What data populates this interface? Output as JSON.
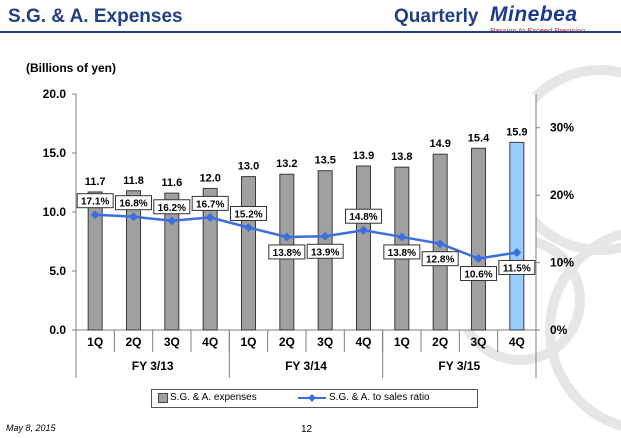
{
  "header": {
    "title": "S.G. & A. Expenses",
    "period_label": "Quarterly",
    "logo_name": "Minebea",
    "logo_tagline": "Passion to Exceed Precision",
    "brand_color": "#1f3f86",
    "tagline_color": "#c81e1e"
  },
  "footer": {
    "date": "May 8, 2015",
    "page": "12"
  },
  "chart_data": {
    "type": "bar",
    "title": "S.G. & A. Expenses",
    "unit_label": "(Billions of yen)",
    "ylim": [
      0,
      20
    ],
    "y_ticks": [
      "0.0",
      "5.0",
      "10.0",
      "15.0",
      "20.0"
    ],
    "y2lim": [
      0,
      35
    ],
    "y2_ticks": [
      "0%",
      "10%",
      "20%",
      "30%"
    ],
    "categories": [
      "1Q",
      "2Q",
      "3Q",
      "4Q",
      "1Q",
      "2Q",
      "3Q",
      "4Q",
      "1Q",
      "2Q",
      "3Q",
      "4Q"
    ],
    "groups": [
      {
        "label": "FY 3/13",
        "count": 4
      },
      {
        "label": "FY 3/14",
        "count": 4
      },
      {
        "label": "FY 3/15",
        "count": 4
      }
    ],
    "series": [
      {
        "name": "S.G. & A. expenses",
        "type": "bar",
        "values": [
          11.7,
          11.8,
          11.6,
          12.0,
          13.0,
          13.2,
          13.5,
          13.9,
          13.8,
          14.9,
          15.4,
          15.9
        ],
        "labels": [
          "11.7",
          "11.8",
          "11.6",
          "12.0",
          "13.0",
          "13.2",
          "13.5",
          "13.9",
          "13.8",
          "14.9",
          "15.4",
          "15.9"
        ],
        "color": "#a0a0a0",
        "highlight_color": "#99ccff",
        "highlight_index": 11
      },
      {
        "name": "S.G. & A. to sales ratio",
        "type": "line",
        "axis": "right",
        "values": [
          17.1,
          16.8,
          16.2,
          16.7,
          15.2,
          13.8,
          13.9,
          14.8,
          13.8,
          12.8,
          10.6,
          11.5
        ],
        "labels": [
          "17.1%",
          "16.8%",
          "16.2%",
          "16.7%",
          "15.2%",
          "13.8%",
          "13.9%",
          "14.8%",
          "13.8%",
          "12.8%",
          "10.6%",
          "11.5%"
        ],
        "color": "#3b6fe0"
      }
    ],
    "legend": [
      "S.G. & A. expenses",
      "S.G. & A. to sales ratio"
    ],
    "legend_position": "bottom"
  }
}
